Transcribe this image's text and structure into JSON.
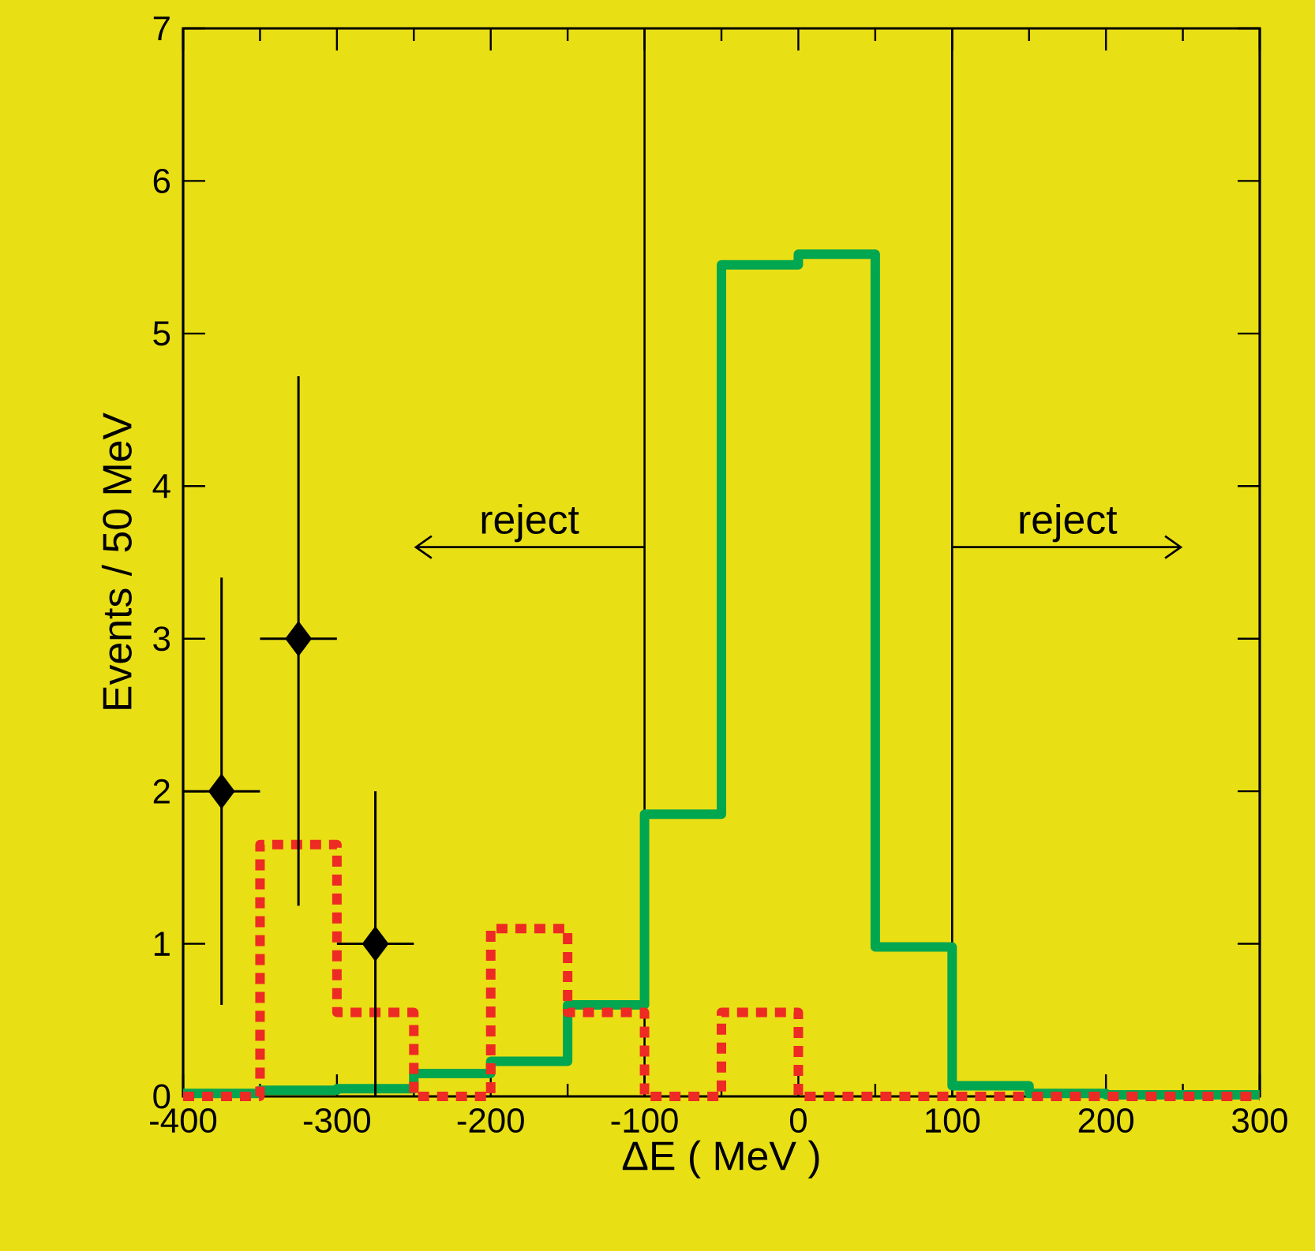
{
  "chart_data": {
    "type": "histogram",
    "xlabel": "ΔE ( MeV )",
    "ylabel": "Events / 50 MeV",
    "bins": [
      -400,
      -350,
      -300,
      -250,
      -200,
      -150,
      -100,
      -50,
      0,
      50,
      100,
      150,
      200,
      250,
      300
    ],
    "series": [
      {
        "color": "#00a650",
        "line_style": "solid",
        "values": [
          0.02,
          0.04,
          0.05,
          0.15,
          0.23,
          0.6,
          1.85,
          5.45,
          5.52,
          0.98,
          0.07,
          0.02,
          0.01,
          0.01
        ]
      },
      {
        "color": "#ee2a24",
        "line_style": "dotted",
        "values": [
          0,
          1.65,
          0.55,
          0,
          1.1,
          0.55,
          0,
          0.55,
          0,
          0,
          0,
          0,
          0,
          0
        ]
      },
      {
        "type": "scatter",
        "color": "#000000",
        "marker": "diamond",
        "x": [
          -375,
          -325,
          -275
        ],
        "values": [
          2,
          3,
          1
        ],
        "errors": [
          [
            0.6,
            3.4
          ],
          [
            1.25,
            4.72
          ],
          [
            0,
            2
          ]
        ],
        "xerrors": [
          25,
          25,
          25
        ]
      }
    ],
    "ref_lines": [
      {
        "axis": "x",
        "value": -100,
        "color": "#000000"
      },
      {
        "axis": "x",
        "value": 100,
        "color": "#000000"
      }
    ],
    "annotations": [
      "reject",
      "reject"
    ],
    "xlim": [
      -400,
      300
    ],
    "ylim": [
      0,
      7
    ],
    "xticks": [
      -400,
      -300,
      -200,
      -100,
      0,
      100,
      200,
      300
    ],
    "yticks": [
      0,
      1,
      2,
      3,
      4,
      5,
      6,
      7
    ],
    "grid": false
  }
}
